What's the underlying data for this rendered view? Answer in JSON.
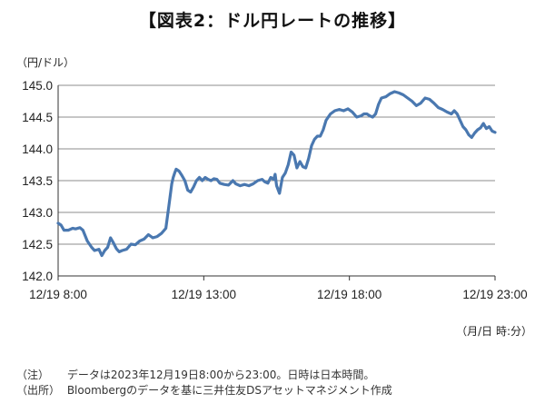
{
  "title": "【図表2：ドル円レートの推移】",
  "y_unit": "（円/ドル）",
  "x_unit": "（月/日 時:分）",
  "notes": [
    {
      "tag": "（注）",
      "text": "データは2023年12月19日8:00から23:00。日時は日本時間。"
    },
    {
      "tag": "（出所）",
      "text": "Bloombergのデータを基に三井住友DSアセットマネジメント作成"
    }
  ],
  "chart_data": {
    "type": "line",
    "title": "【図表2：ドル円レートの推移】",
    "xlabel": "（月/日 時:分）",
    "ylabel": "（円/ドル）",
    "ylim": [
      142.0,
      145.0
    ],
    "y_ticks": [
      "142.0",
      "142.5",
      "143.0",
      "143.5",
      "144.0",
      "144.5",
      "145.0"
    ],
    "x_tick_labels": [
      "12/19 8:00",
      "12/19 13:00",
      "12/19 18:00",
      "12/19 23:00"
    ],
    "x_ticks_hours": [
      8,
      13,
      18,
      23
    ],
    "xlim_hours": [
      8,
      23
    ],
    "grid": true,
    "line_color": "#4a78b0",
    "series": [
      {
        "x_hours": [
          8.0,
          8.1,
          8.2,
          8.35,
          8.5,
          8.6,
          8.75,
          8.85,
          9.0,
          9.15,
          9.25,
          9.4,
          9.5,
          9.6,
          9.7,
          9.8,
          9.9,
          10.0,
          10.1,
          10.2,
          10.35,
          10.5,
          10.65,
          10.8,
          10.95,
          11.1,
          11.25,
          11.4,
          11.55,
          11.7,
          11.8,
          11.9,
          11.95,
          12.0,
          12.05,
          12.15,
          12.25,
          12.35,
          12.45,
          12.55,
          12.65,
          12.75,
          12.85,
          12.95,
          13.05,
          13.15,
          13.25,
          13.35,
          13.45,
          13.55,
          13.7,
          13.85,
          14.0,
          14.1,
          14.25,
          14.4,
          14.55,
          14.7,
          14.85,
          15.0,
          15.1,
          15.2,
          15.3,
          15.4,
          15.45,
          15.5,
          15.6,
          15.7,
          15.8,
          15.9,
          16.0,
          16.1,
          16.2,
          16.3,
          16.4,
          16.5,
          16.6,
          16.7,
          16.8,
          16.9,
          17.0,
          17.1,
          17.2,
          17.35,
          17.5,
          17.65,
          17.8,
          17.95,
          18.1,
          18.25,
          18.4,
          18.5,
          18.6,
          18.7,
          18.8,
          18.9,
          19.0,
          19.1,
          19.25,
          19.4,
          19.55,
          19.7,
          19.85,
          20.0,
          20.15,
          20.3,
          20.45,
          20.6,
          20.75,
          20.9,
          21.05,
          21.2,
          21.35,
          21.5,
          21.6,
          21.7,
          21.8,
          21.9,
          22.0,
          22.1,
          22.2,
          22.3,
          22.4,
          22.5,
          22.6,
          22.7,
          22.8,
          22.9,
          23.0
        ],
        "values": [
          142.83,
          142.8,
          142.72,
          142.72,
          142.75,
          142.74,
          142.76,
          142.72,
          142.55,
          142.45,
          142.4,
          142.42,
          142.32,
          142.4,
          142.45,
          142.6,
          142.52,
          142.43,
          142.38,
          142.4,
          142.42,
          142.5,
          142.49,
          142.55,
          142.58,
          142.65,
          142.6,
          142.62,
          142.67,
          142.75,
          143.1,
          143.45,
          143.55,
          143.62,
          143.68,
          143.65,
          143.58,
          143.5,
          143.35,
          143.32,
          143.4,
          143.5,
          143.55,
          143.5,
          143.55,
          143.52,
          143.5,
          143.53,
          143.52,
          143.46,
          143.44,
          143.43,
          143.5,
          143.45,
          143.42,
          143.44,
          143.42,
          143.45,
          143.5,
          143.52,
          143.48,
          143.46,
          143.55,
          143.52,
          143.6,
          143.42,
          143.3,
          143.55,
          143.62,
          143.75,
          143.95,
          143.9,
          143.7,
          143.8,
          143.72,
          143.7,
          143.85,
          144.05,
          144.15,
          144.2,
          144.2,
          144.3,
          144.45,
          144.55,
          144.6,
          144.62,
          144.6,
          144.63,
          144.58,
          144.5,
          144.52,
          144.55,
          144.55,
          144.52,
          144.5,
          144.55,
          144.7,
          144.8,
          144.82,
          144.87,
          144.9,
          144.88,
          144.85,
          144.8,
          144.75,
          144.68,
          144.72,
          144.8,
          144.78,
          144.72,
          144.65,
          144.62,
          144.58,
          144.55,
          144.6,
          144.55,
          144.45,
          144.35,
          144.3,
          144.22,
          144.18,
          144.25,
          144.3,
          144.33,
          144.4,
          144.32,
          144.35,
          144.28,
          144.26
        ]
      }
    ]
  }
}
